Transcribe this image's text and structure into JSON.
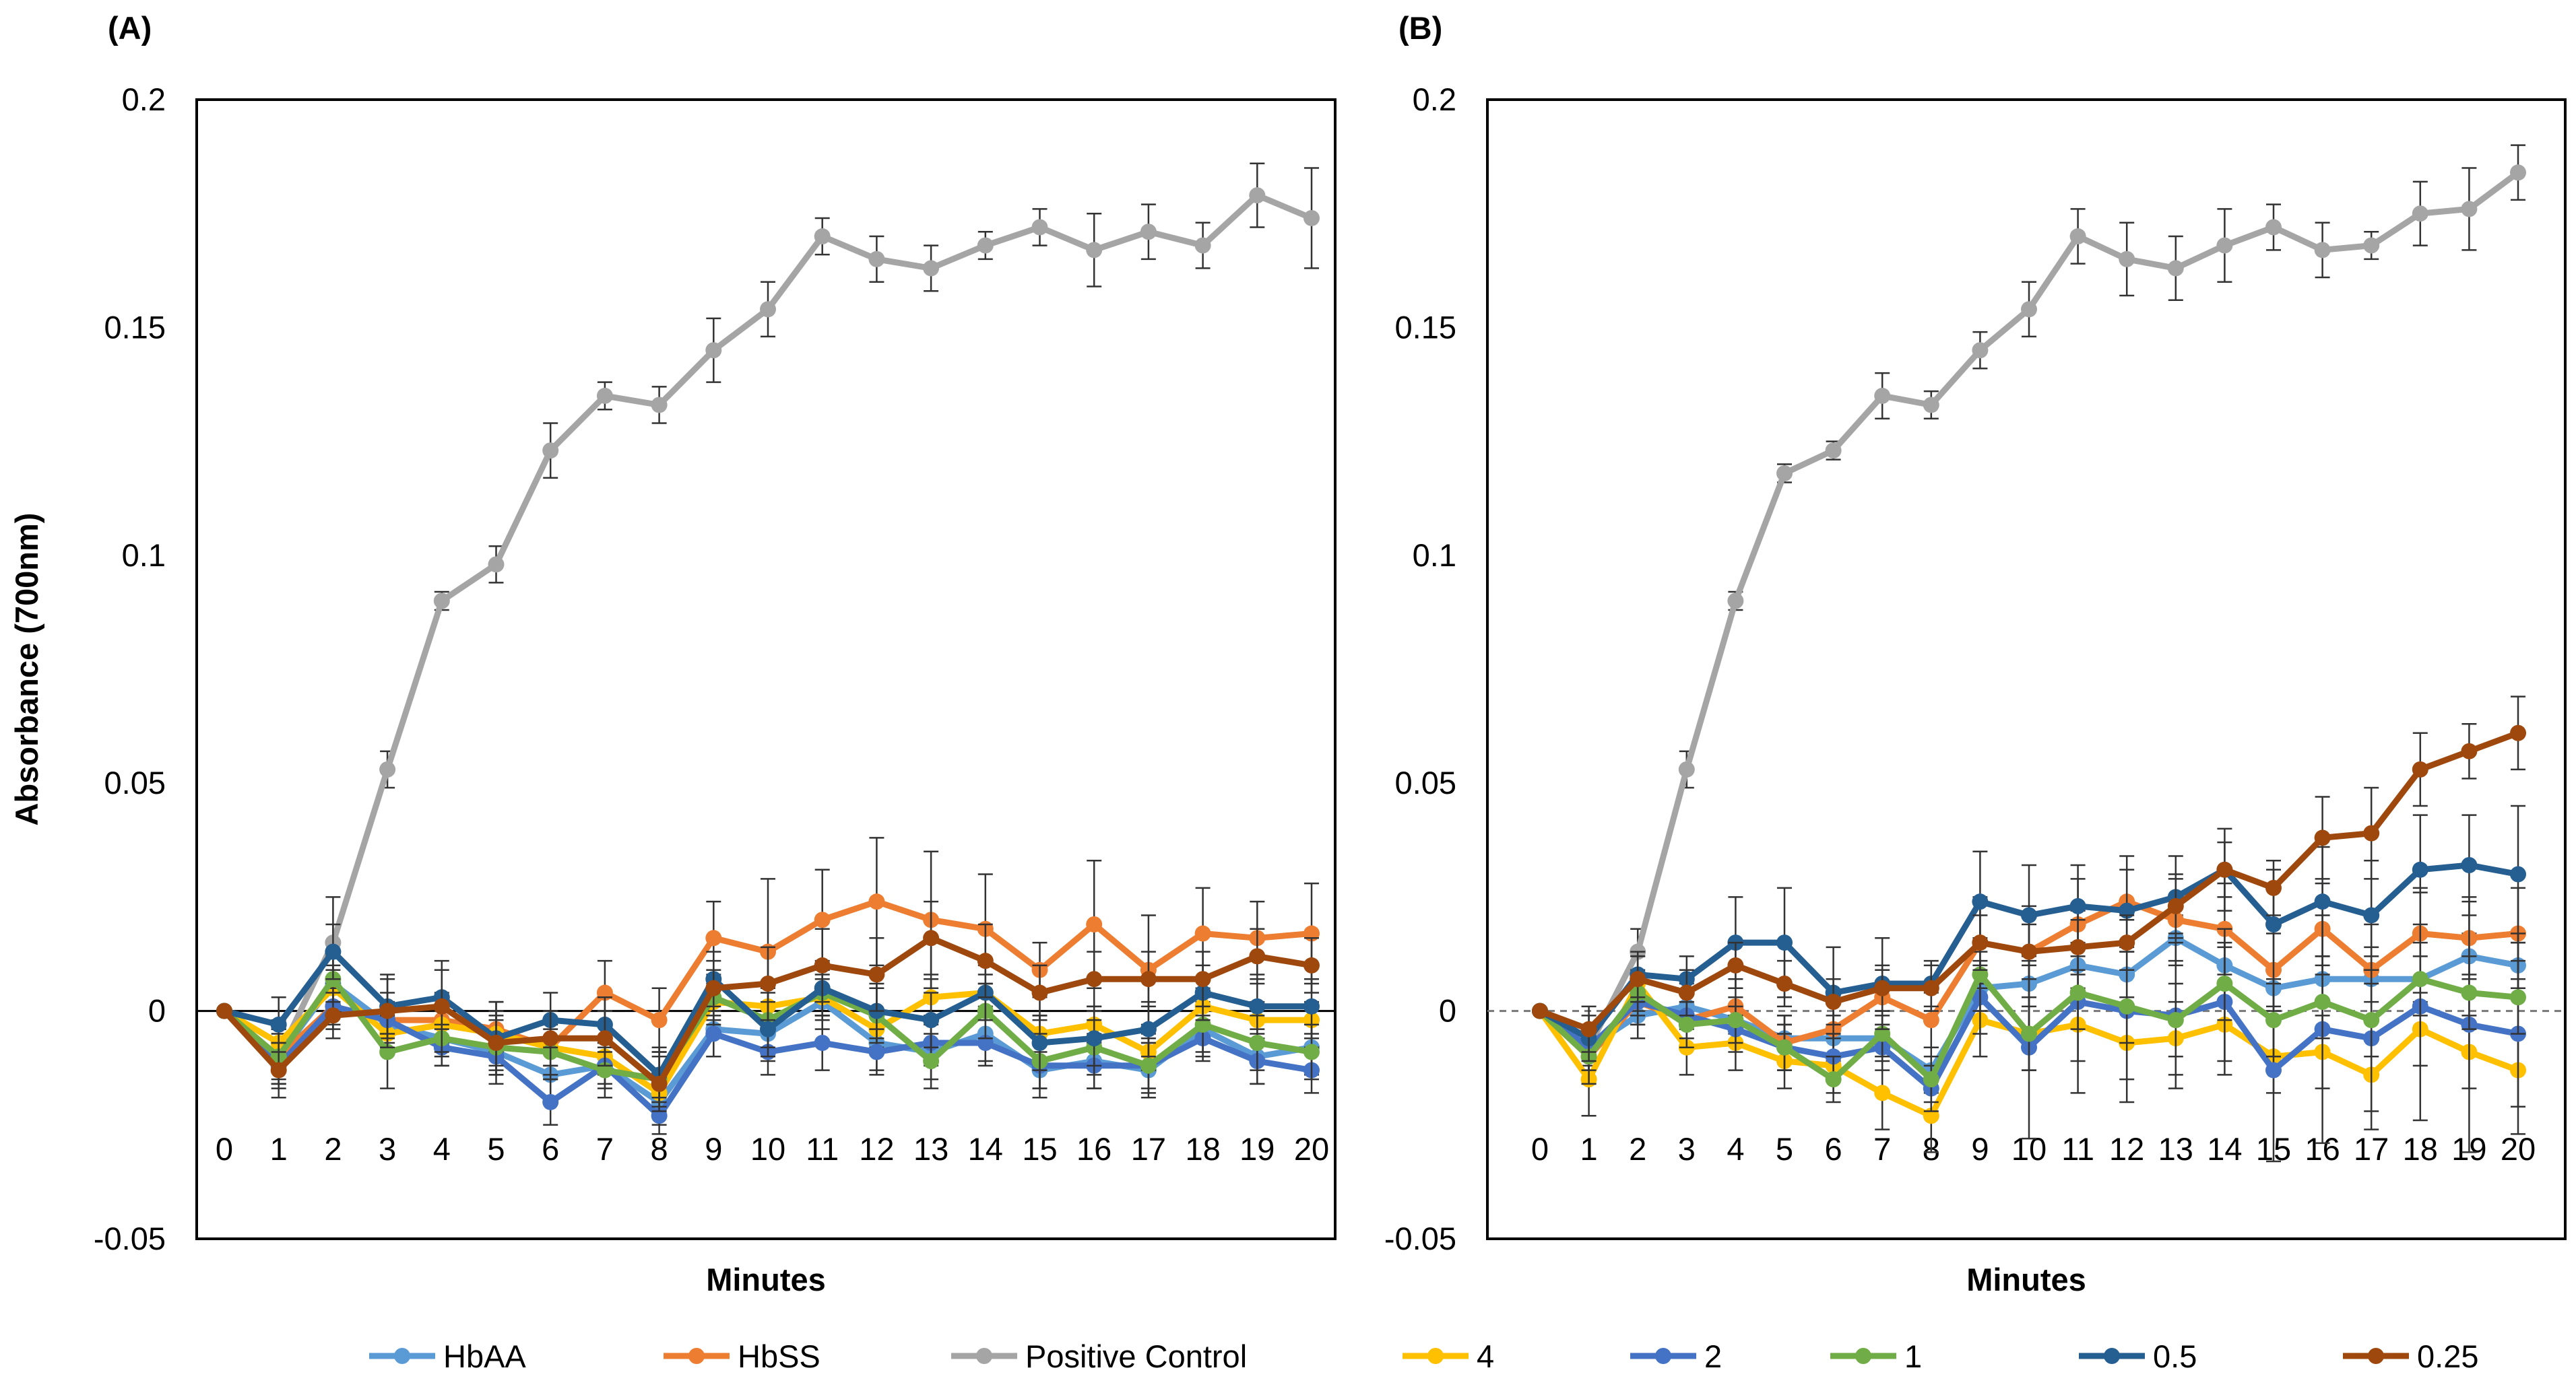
{
  "chart_data": [
    {
      "type": "line",
      "panel": "(A)",
      "xlabel": "Minutes",
      "ylabel": "Absorbance (700nm)",
      "ylim": [
        -0.05,
        0.2
      ],
      "yticks": [
        "0.2",
        "0.15",
        "0.1",
        "0.05",
        "0",
        "-0.05"
      ],
      "yticks_values": [
        0.2,
        0.15,
        0.1,
        0.05,
        0,
        -0.05
      ],
      "categories": [
        "0",
        "1",
        "2",
        "3",
        "4",
        "5",
        "6",
        "7",
        "8",
        "9",
        "10",
        "11",
        "12",
        "13",
        "14",
        "15",
        "16",
        "17",
        "18",
        "19",
        "20"
      ],
      "series": [
        {
          "name": "HbAA",
          "color": "#5B9BD5",
          "values": [
            0,
            -0.01,
            0.006,
            -0.003,
            -0.006,
            -0.009,
            -0.014,
            -0.012,
            -0.02,
            -0.004,
            -0.005,
            0.002,
            -0.007,
            -0.009,
            -0.005,
            -0.013,
            -0.011,
            -0.013,
            -0.004,
            -0.01,
            -0.008
          ],
          "errors": [
            0,
            0.006,
            0.004,
            0.004,
            0.004,
            0.004,
            0.005,
            0.005,
            0.005,
            0.006,
            0.006,
            0.006,
            0.006,
            0.006,
            0.006,
            0.006,
            0.006,
            0.006,
            0.006,
            0.006,
            0.006
          ]
        },
        {
          "name": "HbSS",
          "color": "#ED7D31",
          "values": [
            0,
            -0.01,
            0.001,
            -0.002,
            -0.002,
            -0.004,
            -0.008,
            0.004,
            -0.002,
            0.016,
            0.013,
            0.02,
            0.024,
            0.02,
            0.018,
            0.009,
            0.019,
            0.009,
            0.017,
            0.016,
            0.017
          ],
          "errors": [
            0,
            0.006,
            0.005,
            0.006,
            0.006,
            0.006,
            0.006,
            0.007,
            0.007,
            0.008,
            0.016,
            0.011,
            0.014,
            0.015,
            0.012,
            0.006,
            0.014,
            0.012,
            0.01,
            0.008,
            0.011
          ]
        },
        {
          "name": "Positive Control",
          "color": "#A5A5A5",
          "values": [
            0,
            -0.01,
            0.015,
            0.053,
            0.09,
            0.098,
            0.123,
            0.135,
            0.133,
            0.145,
            0.154,
            0.17,
            0.165,
            0.163,
            0.168,
            0.172,
            0.167,
            0.171,
            0.168,
            0.179,
            0.174
          ],
          "errors": [
            0,
            0.005,
            0.01,
            0.004,
            0.002,
            0.004,
            0.006,
            0.003,
            0.004,
            0.007,
            0.006,
            0.004,
            0.005,
            0.005,
            0.003,
            0.004,
            0.008,
            0.006,
            0.005,
            0.007,
            0.011
          ]
        },
        {
          "name": "4",
          "color": "#FFC000",
          "values": [
            0,
            -0.007,
            0.005,
            -0.005,
            -0.003,
            -0.005,
            -0.008,
            -0.01,
            -0.018,
            0.002,
            0.001,
            0.003,
            -0.004,
            0.003,
            0.004,
            -0.005,
            -0.003,
            -0.009,
            0.001,
            -0.002,
            -0.002
          ],
          "errors": [
            0,
            0.005,
            0.004,
            0.004,
            0.004,
            0.004,
            0.004,
            0.004,
            0.004,
            0.004,
            0.004,
            0.004,
            0.004,
            0.004,
            0.004,
            0.004,
            0.004,
            0.004,
            0.004,
            0.004,
            0.004
          ]
        },
        {
          "name": "2",
          "color": "#4472C4",
          "values": [
            0,
            -0.012,
            0.001,
            -0.002,
            -0.008,
            -0.01,
            -0.02,
            -0.012,
            -0.023,
            -0.005,
            -0.009,
            -0.007,
            -0.009,
            -0.007,
            -0.007,
            -0.012,
            -0.012,
            -0.012,
            -0.006,
            -0.011,
            -0.013
          ],
          "errors": [
            0,
            0.005,
            0.004,
            0.004,
            0.004,
            0.004,
            0.005,
            0.004,
            0.004,
            0.005,
            0.005,
            0.006,
            0.005,
            0.005,
            0.005,
            0.005,
            0.005,
            0.005,
            0.005,
            0.005,
            0.005
          ]
        },
        {
          "name": "1",
          "color": "#70AD47",
          "values": [
            0,
            -0.01,
            0.007,
            -0.009,
            -0.006,
            -0.008,
            -0.009,
            -0.013,
            -0.015,
            0.003,
            -0.002,
            0.004,
            -0.001,
            -0.011,
            0.0,
            -0.011,
            -0.008,
            -0.012,
            -0.003,
            -0.007,
            -0.009
          ],
          "errors": [
            0,
            0.006,
            0.005,
            0.008,
            0.006,
            0.006,
            0.006,
            0.006,
            0.006,
            0.006,
            0.006,
            0.006,
            0.006,
            0.006,
            0.006,
            0.006,
            0.006,
            0.006,
            0.006,
            0.006,
            0.006
          ]
        },
        {
          "name": "0.5",
          "color": "#255E91",
          "values": [
            0,
            -0.003,
            0.013,
            0.001,
            0.003,
            -0.006,
            -0.002,
            -0.003,
            -0.014,
            0.007,
            -0.004,
            0.005,
            0.0,
            -0.002,
            0.004,
            -0.007,
            -0.006,
            -0.004,
            0.004,
            0.001,
            0.001
          ],
          "errors": [
            0,
            0.006,
            0.006,
            0.006,
            0.006,
            0.006,
            0.006,
            0.006,
            0.006,
            0.006,
            0.006,
            0.006,
            0.006,
            0.006,
            0.006,
            0.006,
            0.006,
            0.006,
            0.006,
            0.006,
            0.006
          ]
        },
        {
          "name": "0.25",
          "color": "#9E480E",
          "values": [
            0,
            -0.013,
            -0.001,
            0.0,
            0.001,
            -0.007,
            -0.006,
            -0.006,
            -0.016,
            0.005,
            0.006,
            0.01,
            0.008,
            0.016,
            0.011,
            0.004,
            0.007,
            0.007,
            0.007,
            0.012,
            0.01
          ],
          "errors": [
            0,
            0.006,
            0.005,
            0.008,
            0.01,
            0.009,
            0.006,
            0.006,
            0.006,
            0.006,
            0.008,
            0.008,
            0.008,
            0.008,
            0.008,
            0.006,
            0.006,
            0.006,
            0.006,
            0.006,
            0.006
          ]
        }
      ]
    },
    {
      "type": "line",
      "panel": "(B)",
      "xlabel": "Minutes",
      "ylabel": "",
      "ylim": [
        -0.05,
        0.2
      ],
      "yticks": [
        "0.2",
        "0.15",
        "0.1",
        "0.05",
        "0",
        "-0.05"
      ],
      "yticks_values": [
        0.2,
        0.15,
        0.1,
        0.05,
        0,
        -0.05
      ],
      "categories": [
        "0",
        "1",
        "2",
        "3",
        "4",
        "5",
        "6",
        "7",
        "8",
        "9",
        "10",
        "11",
        "12",
        "13",
        "14",
        "15",
        "16",
        "17",
        "18",
        "19",
        "20"
      ],
      "series": [
        {
          "name": "HbAA",
          "color": "#5B9BD5",
          "values": [
            0,
            -0.008,
            -0.001,
            0.001,
            -0.002,
            -0.006,
            -0.006,
            -0.006,
            -0.013,
            0.005,
            0.006,
            0.01,
            0.008,
            0.016,
            0.01,
            0.005,
            0.007,
            0.007,
            0.007,
            0.012,
            0.01
          ],
          "errors": [
            0,
            0.005,
            0.005,
            0.005,
            0.005,
            0.005,
            0.005,
            0.005,
            0.005,
            0.005,
            0.005,
            0.005,
            0.005,
            0.005,
            0.005,
            0.005,
            0.005,
            0.005,
            0.005,
            0.005,
            0.005
          ]
        },
        {
          "name": "HbSS",
          "color": "#ED7D31",
          "values": [
            0,
            -0.01,
            0.002,
            -0.002,
            0.001,
            -0.007,
            -0.004,
            0.003,
            -0.002,
            0.015,
            0.013,
            0.019,
            0.024,
            0.02,
            0.018,
            0.009,
            0.018,
            0.009,
            0.017,
            0.016,
            0.017
          ],
          "errors": [
            0,
            0.006,
            0.005,
            0.006,
            0.006,
            0.006,
            0.006,
            0.006,
            0.006,
            0.01,
            0.01,
            0.01,
            0.01,
            0.01,
            0.01,
            0.008,
            0.01,
            0.01,
            0.01,
            0.008,
            0.01
          ]
        },
        {
          "name": "Positive Control",
          "color": "#A5A5A5",
          "values": [
            0,
            -0.008,
            0.013,
            0.053,
            0.09,
            0.118,
            0.123,
            0.135,
            0.133,
            0.145,
            0.154,
            0.17,
            0.165,
            0.163,
            0.168,
            0.172,
            0.167,
            0.168,
            0.175,
            0.176,
            0.184
          ],
          "errors": [
            0,
            0.004,
            0.005,
            0.004,
            0.002,
            0.002,
            0.002,
            0.005,
            0.003,
            0.004,
            0.006,
            0.006,
            0.008,
            0.007,
            0.008,
            0.005,
            0.006,
            0.003,
            0.007,
            0.009,
            0.006
          ]
        },
        {
          "name": "4",
          "color": "#FFC000",
          "values": [
            0,
            -0.015,
            0.006,
            -0.008,
            -0.007,
            -0.011,
            -0.012,
            -0.018,
            -0.023,
            -0.002,
            -0.005,
            -0.003,
            -0.007,
            -0.006,
            -0.003,
            -0.01,
            -0.009,
            -0.014,
            -0.004,
            -0.009,
            -0.013
          ],
          "errors": [
            0,
            0.008,
            0.006,
            0.006,
            0.006,
            0.006,
            0.006,
            0.008,
            0.008,
            0.008,
            0.008,
            0.008,
            0.008,
            0.008,
            0.008,
            0.008,
            0.008,
            0.008,
            0.008,
            0.008,
            0.008
          ]
        },
        {
          "name": "2",
          "color": "#4472C4",
          "values": [
            0,
            -0.008,
            0.002,
            -0.001,
            -0.004,
            -0.008,
            -0.01,
            -0.008,
            -0.017,
            0.003,
            -0.008,
            0.002,
            0.0,
            -0.001,
            0.002,
            -0.013,
            -0.004,
            -0.006,
            0.001,
            -0.003,
            -0.005
          ],
          "errors": [
            0,
            0.005,
            0.005,
            0.005,
            0.005,
            0.005,
            0.005,
            0.005,
            0.005,
            0.008,
            0.02,
            0.02,
            0.02,
            0.016,
            0.016,
            0.02,
            0.025,
            0.02,
            0.025,
            0.028,
            0.022
          ]
        },
        {
          "name": "1",
          "color": "#70AD47",
          "values": [
            0,
            -0.01,
            0.004,
            -0.003,
            -0.002,
            -0.008,
            -0.015,
            -0.005,
            -0.015,
            0.008,
            -0.005,
            0.004,
            0.001,
            -0.002,
            0.006,
            -0.002,
            0.002,
            -0.002,
            0.007,
            0.004,
            0.003
          ],
          "errors": [
            0,
            0.006,
            0.005,
            0.005,
            0.005,
            0.005,
            0.005,
            0.005,
            0.005,
            0.008,
            0.008,
            0.008,
            0.008,
            0.008,
            0.008,
            0.008,
            0.008,
            0.008,
            0.008,
            0.008,
            0.008
          ]
        },
        {
          "name": "0.5",
          "color": "#255E91",
          "values": [
            0,
            -0.006,
            0.008,
            0.007,
            0.015,
            0.015,
            0.004,
            0.006,
            0.006,
            0.024,
            0.021,
            0.023,
            0.022,
            0.025,
            0.031,
            0.019,
            0.024,
            0.021,
            0.031,
            0.032,
            0.03
          ],
          "errors": [
            0,
            0.005,
            0.005,
            0.005,
            0.01,
            0.012,
            0.01,
            0.01,
            0.005,
            0.011,
            0.011,
            0.009,
            0.009,
            0.009,
            0.009,
            0.012,
            0.012,
            0.012,
            0.012,
            0.011,
            0.015
          ]
        },
        {
          "name": "0.25",
          "color": "#9E480E",
          "values": [
            0,
            -0.004,
            0.007,
            0.004,
            0.01,
            0.006,
            0.002,
            0.005,
            0.005,
            0.015,
            0.013,
            0.014,
            0.015,
            0.023,
            0.031,
            0.027,
            0.038,
            0.039,
            0.053,
            0.057,
            0.061
          ],
          "errors": [
            0,
            0.005,
            0.005,
            0.005,
            0.005,
            0.005,
            0.005,
            0.005,
            0.005,
            0.006,
            0.006,
            0.006,
            0.006,
            0.006,
            0.006,
            0.006,
            0.009,
            0.01,
            0.008,
            0.006,
            0.008
          ]
        }
      ]
    }
  ],
  "legend": [
    {
      "label": "HbAA",
      "color": "#5B9BD5"
    },
    {
      "label": "HbSS",
      "color": "#ED7D31"
    },
    {
      "label": "Positive Control",
      "color": "#A5A5A5"
    },
    {
      "label": "4",
      "color": "#FFC000"
    },
    {
      "label": "2",
      "color": "#4472C4"
    },
    {
      "label": "1",
      "color": "#70AD47"
    },
    {
      "label": "0.5",
      "color": "#255E91"
    },
    {
      "label": "0.25",
      "color": "#9E480E"
    }
  ]
}
